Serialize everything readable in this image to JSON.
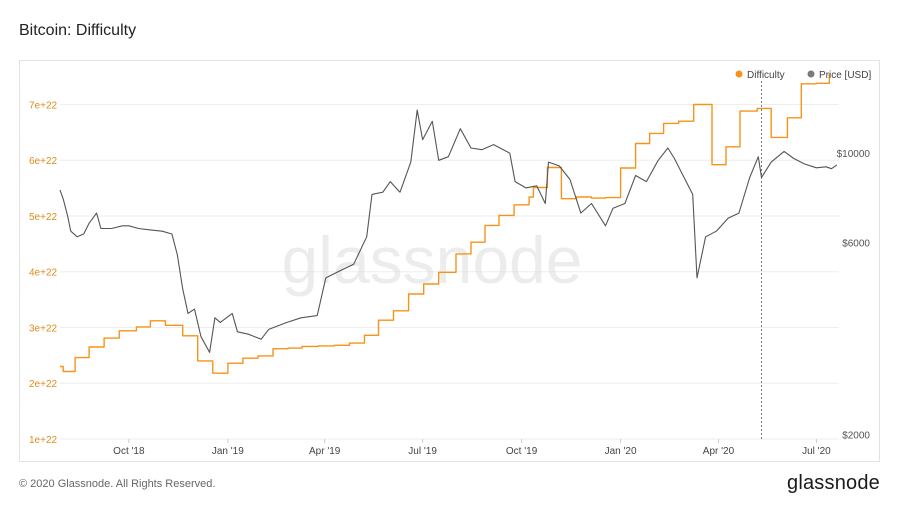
{
  "header": {
    "title": "Bitcoin: Difficulty"
  },
  "footer": {
    "copyright": "© 2020 Glassnode. All Rights Reserved.",
    "logo": "glassnode"
  },
  "watermark": "glassnode",
  "colors": {
    "difficulty": "#f7931a",
    "price": "#555555",
    "grid": "#eeeeee",
    "left_tick": "#e08a1a",
    "right_tick": "#555555"
  },
  "chart_data": {
    "type": "line",
    "title": "Bitcoin: Difficulty",
    "legend": {
      "placement": "top-right",
      "items": [
        {
          "name": "Difficulty",
          "color": "#f7931a"
        },
        {
          "name": "Price [USD]",
          "color": "#7a7a7a"
        }
      ]
    },
    "x_axis": {
      "type": "date",
      "range": [
        "2018-07-29",
        "2020-07-22"
      ],
      "ticks": [
        {
          "date": "2018-10-01",
          "label": "Oct '18"
        },
        {
          "date": "2019-01-01",
          "label": "Jan '19"
        },
        {
          "date": "2019-04-01",
          "label": "Apr '19"
        },
        {
          "date": "2019-07-01",
          "label": "Jul '19"
        },
        {
          "date": "2019-10-01",
          "label": "Oct '19"
        },
        {
          "date": "2020-01-01",
          "label": "Jan '20"
        },
        {
          "date": "2020-04-01",
          "label": "Apr '20"
        },
        {
          "date": "2020-07-01",
          "label": "Jul '20"
        }
      ]
    },
    "y_left": {
      "scale": "linear",
      "range": [
        1e+22,
        7.6e+22
      ],
      "ticks": [
        {
          "value": 1e+22,
          "label": "1e+22"
        },
        {
          "value": 2e+22,
          "label": "2e+22"
        },
        {
          "value": 3e+22,
          "label": "3e+22"
        },
        {
          "value": 4e+22,
          "label": "4e+22"
        },
        {
          "value": 5e+22,
          "label": "5e+22"
        },
        {
          "value": 6e+22,
          "label": "6e+22"
        },
        {
          "value": 7e+22,
          "label": "7e+22"
        }
      ]
    },
    "y_right": {
      "scale": "log",
      "range": [
        1950,
        16000
      ],
      "ticks": [
        {
          "value": 2000,
          "label": "$2000"
        },
        {
          "value": 6000,
          "label": "$6000"
        },
        {
          "value": 10000,
          "label": "$10000"
        }
      ]
    },
    "grid": true,
    "marker_line": {
      "date": "2020-05-11"
    },
    "series": [
      {
        "name": "Difficulty",
        "axis": "left",
        "style": "step",
        "points": [
          [
            "2018-07-29",
            2.3e+22
          ],
          [
            "2018-08-01",
            2.21e+22
          ],
          [
            "2018-08-12",
            2.46e+22
          ],
          [
            "2018-08-25",
            2.65e+22
          ],
          [
            "2018-09-08",
            2.81e+22
          ],
          [
            "2018-09-22",
            2.94e+22
          ],
          [
            "2018-10-08",
            3.01e+22
          ],
          [
            "2018-10-21",
            3.12e+22
          ],
          [
            "2018-11-04",
            3.04e+22
          ],
          [
            "2018-11-20",
            2.85e+22
          ],
          [
            "2018-12-04",
            2.4e+22
          ],
          [
            "2018-12-18",
            2.18e+22
          ],
          [
            "2019-01-01",
            2.36e+22
          ],
          [
            "2019-01-15",
            2.45e+22
          ],
          [
            "2019-01-29",
            2.49e+22
          ],
          [
            "2019-02-12",
            2.62e+22
          ],
          [
            "2019-02-26",
            2.63e+22
          ],
          [
            "2019-03-11",
            2.66e+22
          ],
          [
            "2019-03-26",
            2.67e+22
          ],
          [
            "2019-04-10",
            2.68e+22
          ],
          [
            "2019-04-24",
            2.72e+22
          ],
          [
            "2019-05-08",
            2.86e+22
          ],
          [
            "2019-05-21",
            3.13e+22
          ],
          [
            "2019-06-04",
            3.3e+22
          ],
          [
            "2019-06-18",
            3.6e+22
          ],
          [
            "2019-07-02",
            3.78e+22
          ],
          [
            "2019-07-16",
            3.99e+22
          ],
          [
            "2019-08-01",
            4.32e+22
          ],
          [
            "2019-08-15",
            4.53e+22
          ],
          [
            "2019-08-28",
            4.83e+22
          ],
          [
            "2019-09-10",
            5.01e+22
          ],
          [
            "2019-09-24",
            5.2e+22
          ],
          [
            "2019-10-08",
            5.34e+22
          ],
          [
            "2019-10-12",
            5.51e+22
          ],
          [
            "2019-10-25",
            5.87e+22
          ],
          [
            "2019-11-07",
            5.31e+22
          ],
          [
            "2019-11-21",
            5.34e+22
          ],
          [
            "2019-12-05",
            5.32e+22
          ],
          [
            "2019-12-18",
            5.33e+22
          ],
          [
            "2020-01-01",
            5.86e+22
          ],
          [
            "2020-01-15",
            6.3e+22
          ],
          [
            "2020-01-28",
            6.48e+22
          ],
          [
            "2020-02-10",
            6.66e+22
          ],
          [
            "2020-02-24",
            6.7e+22
          ],
          [
            "2020-03-09",
            7e+22
          ],
          [
            "2020-03-26",
            5.92e+22
          ],
          [
            "2020-04-08",
            6.24e+22
          ],
          [
            "2020-04-21",
            6.88e+22
          ],
          [
            "2020-05-07",
            6.93e+22
          ],
          [
            "2020-05-20",
            6.41e+22
          ],
          [
            "2020-06-04",
            6.76e+22
          ],
          [
            "2020-06-17",
            7.37e+22
          ],
          [
            "2020-07-01",
            7.38e+22
          ],
          [
            "2020-07-12",
            7.38e+22
          ],
          [
            "2020-07-13",
            7.56e+22
          ]
        ]
      },
      {
        "name": "Price [USD]",
        "axis": "right",
        "style": "line",
        "points": [
          [
            "2018-07-29",
            8100
          ],
          [
            "2018-08-01",
            7700
          ],
          [
            "2018-08-05",
            7000
          ],
          [
            "2018-08-08",
            6400
          ],
          [
            "2018-08-14",
            6200
          ],
          [
            "2018-08-20",
            6300
          ],
          [
            "2018-08-25",
            6700
          ],
          [
            "2018-09-01",
            7100
          ],
          [
            "2018-09-05",
            6500
          ],
          [
            "2018-09-15",
            6500
          ],
          [
            "2018-09-25",
            6600
          ],
          [
            "2018-10-01",
            6600
          ],
          [
            "2018-10-10",
            6500
          ],
          [
            "2018-10-20",
            6450
          ],
          [
            "2018-11-01",
            6400
          ],
          [
            "2018-11-10",
            6300
          ],
          [
            "2018-11-15",
            5600
          ],
          [
            "2018-11-20",
            4600
          ],
          [
            "2018-11-25",
            4000
          ],
          [
            "2018-12-01",
            4100
          ],
          [
            "2018-12-07",
            3500
          ],
          [
            "2018-12-15",
            3200
          ],
          [
            "2018-12-20",
            3900
          ],
          [
            "2018-12-25",
            3800
          ],
          [
            "2019-01-05",
            4000
          ],
          [
            "2019-01-10",
            3600
          ],
          [
            "2019-01-20",
            3550
          ],
          [
            "2019-02-01",
            3450
          ],
          [
            "2019-02-08",
            3650
          ],
          [
            "2019-02-25",
            3800
          ],
          [
            "2019-03-10",
            3900
          ],
          [
            "2019-03-25",
            3950
          ],
          [
            "2019-04-02",
            4900
          ],
          [
            "2019-04-15",
            5100
          ],
          [
            "2019-04-28",
            5300
          ],
          [
            "2019-05-10",
            6200
          ],
          [
            "2019-05-15",
            7900
          ],
          [
            "2019-05-25",
            8000
          ],
          [
            "2019-06-01",
            8500
          ],
          [
            "2019-06-10",
            8000
          ],
          [
            "2019-06-20",
            9500
          ],
          [
            "2019-06-26",
            12800
          ],
          [
            "2019-07-01",
            10800
          ],
          [
            "2019-07-10",
            12000
          ],
          [
            "2019-07-16",
            9600
          ],
          [
            "2019-07-25",
            9800
          ],
          [
            "2019-08-05",
            11500
          ],
          [
            "2019-08-15",
            10300
          ],
          [
            "2019-08-25",
            10200
          ],
          [
            "2019-09-05",
            10500
          ],
          [
            "2019-09-20",
            10000
          ],
          [
            "2019-09-25",
            8500
          ],
          [
            "2019-10-05",
            8200
          ],
          [
            "2019-10-15",
            8300
          ],
          [
            "2019-10-23",
            7500
          ],
          [
            "2019-10-26",
            9500
          ],
          [
            "2019-11-05",
            9300
          ],
          [
            "2019-11-15",
            8600
          ],
          [
            "2019-11-25",
            7100
          ],
          [
            "2019-12-05",
            7500
          ],
          [
            "2019-12-18",
            6600
          ],
          [
            "2019-12-25",
            7300
          ],
          [
            "2020-01-05",
            7500
          ],
          [
            "2020-01-15",
            8800
          ],
          [
            "2020-01-25",
            8500
          ],
          [
            "2020-02-05",
            9600
          ],
          [
            "2020-02-14",
            10300
          ],
          [
            "2020-02-20",
            9700
          ],
          [
            "2020-03-01",
            8600
          ],
          [
            "2020-03-08",
            7900
          ],
          [
            "2020-03-12",
            4900
          ],
          [
            "2020-03-20",
            6200
          ],
          [
            "2020-03-30",
            6400
          ],
          [
            "2020-04-10",
            6900
          ],
          [
            "2020-04-20",
            7100
          ],
          [
            "2020-04-30",
            8700
          ],
          [
            "2020-05-08",
            9800
          ],
          [
            "2020-05-11",
            8700
          ],
          [
            "2020-05-20",
            9500
          ],
          [
            "2020-06-01",
            10100
          ],
          [
            "2020-06-10",
            9700
          ],
          [
            "2020-06-20",
            9400
          ],
          [
            "2020-07-01",
            9200
          ],
          [
            "2020-07-10",
            9250
          ],
          [
            "2020-07-15",
            9150
          ],
          [
            "2020-07-20",
            9350
          ]
        ]
      }
    ]
  }
}
